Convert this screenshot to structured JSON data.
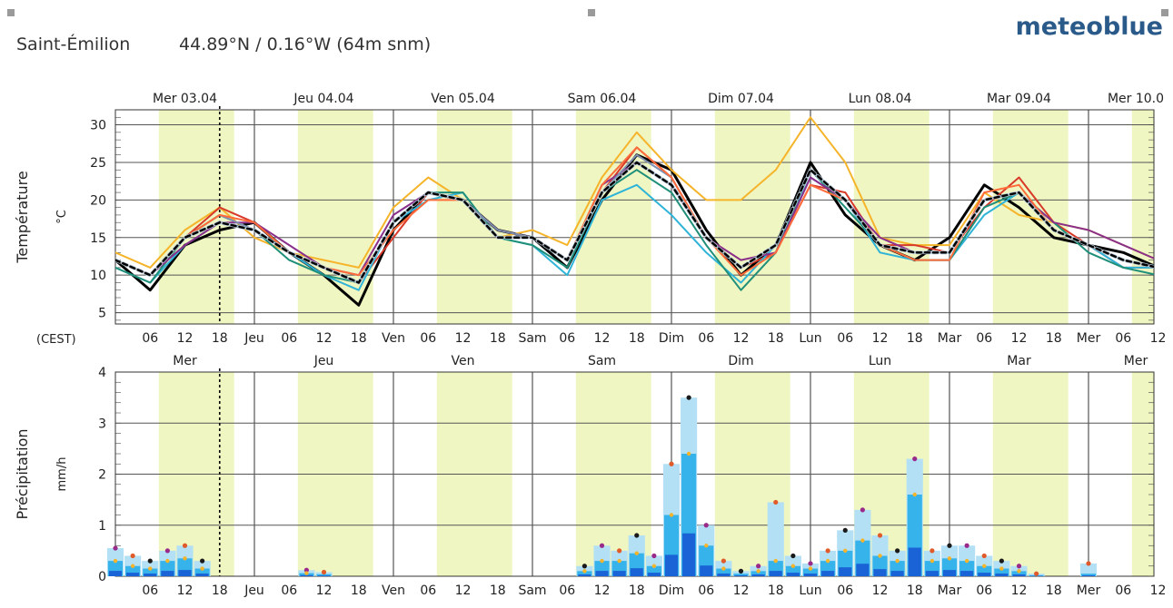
{
  "header": {
    "location": "Saint-Émilion",
    "coords": "44.89°N / 0.16°W (64m snm)",
    "brand": "meteoblue"
  },
  "colors": {
    "daylight": "#f0f6c2",
    "grid": "#555555",
    "median": "#000000",
    "precip_bar_light": "#b3e0f5",
    "precip_bar_mid": "#35b3ea",
    "precip_bar_dark": "#1a63d6",
    "precip_bar_deep": "#1d1aa8"
  },
  "chart_data": [
    {
      "type": "line",
      "ylabel": "Température",
      "yunit": "°C",
      "ylim": [
        3.5,
        32
      ],
      "yticks": [
        5,
        10,
        15,
        20,
        25,
        30
      ],
      "timezone_label": "(CEST)",
      "day_labels": [
        "Mer 03.04",
        "Jeu 04.04",
        "Ven 05.04",
        "Sam 06.04",
        "Dim 07.04",
        "Lun 08.04",
        "Mar 09.04",
        "Mer 10.0"
      ],
      "hour_ticks": [
        "06",
        "12",
        "18",
        "Jeu",
        "06",
        "12",
        "18",
        "Ven",
        "06",
        "12",
        "18",
        "Sam",
        "06",
        "12",
        "18",
        "Dim",
        "06",
        "12",
        "18",
        "Lun",
        "06",
        "12",
        "18",
        "Mar",
        "06",
        "12",
        "18",
        "Mer",
        "06",
        "12"
      ],
      "x_hours": [
        0,
        6,
        12,
        18,
        24,
        30,
        36,
        42,
        48,
        54,
        60,
        66,
        72,
        78,
        84,
        90,
        96,
        102,
        108,
        114,
        120,
        126,
        132,
        138,
        144,
        150,
        156,
        162,
        168,
        174,
        180
      ],
      "series": [
        {
          "color": "#000000",
          "width": 3,
          "values": [
            12,
            8,
            14,
            16,
            17,
            13,
            10,
            6,
            16,
            21,
            20,
            16,
            15,
            11,
            20,
            26,
            24,
            16,
            10,
            14,
            25,
            18,
            14,
            12,
            15,
            22,
            19,
            15,
            14,
            13,
            11
          ]
        },
        {
          "color": "#f5b42a",
          "width": 2,
          "values": [
            13,
            11,
            16,
            19,
            15,
            13,
            12,
            11,
            19,
            23,
            20,
            15,
            16,
            14,
            23,
            29,
            24,
            20,
            20,
            24,
            31,
            25,
            15,
            14,
            14,
            21,
            18,
            17,
            16,
            14,
            12
          ]
        },
        {
          "color": "#d83a2a",
          "width": 2,
          "values": [
            12,
            10,
            15,
            19,
            17,
            13,
            11,
            9,
            15,
            21,
            20,
            15,
            15,
            12,
            21,
            27,
            23,
            15,
            11,
            13,
            22,
            21,
            14,
            14,
            13,
            19,
            23,
            17,
            14,
            11,
            11
          ]
        },
        {
          "color": "#2fb4d8",
          "width": 2,
          "values": [
            11,
            9,
            14,
            17,
            16,
            13,
            10,
            8,
            17,
            20,
            21,
            15,
            14,
            10,
            20,
            22,
            18,
            13,
            9,
            14,
            23,
            20,
            13,
            12,
            12,
            18,
            21,
            16,
            14,
            11,
            11
          ]
        },
        {
          "color": "#1f8f7a",
          "width": 2,
          "values": [
            11,
            9,
            15,
            18,
            16,
            12,
            10,
            9,
            17,
            21,
            21,
            15,
            14,
            11,
            21,
            24,
            21,
            14,
            8,
            13,
            24,
            19,
            14,
            12,
            12,
            19,
            21,
            17,
            13,
            11,
            10
          ]
        },
        {
          "color": "#8a2f8a",
          "width": 2,
          "values": [
            12,
            10,
            14,
            17,
            17,
            14,
            11,
            10,
            18,
            21,
            20,
            16,
            15,
            12,
            22,
            25,
            22,
            15,
            12,
            13,
            23,
            20,
            15,
            13,
            13,
            20,
            21,
            17,
            16,
            14,
            12
          ]
        },
        {
          "color": "#7f8fb0",
          "width": 2,
          "values": [
            12,
            10,
            15,
            18,
            16,
            13,
            11,
            9,
            17,
            21,
            20,
            16,
            15,
            12,
            21,
            26,
            23,
            15,
            11,
            14,
            24,
            20,
            14,
            13,
            13,
            20,
            21,
            16,
            14,
            12,
            11
          ]
        },
        {
          "color": "#ff6b3a",
          "width": 2,
          "values": [
            12,
            10,
            15,
            18,
            17,
            13,
            11,
            10,
            16,
            20,
            20,
            15,
            15,
            12,
            22,
            27,
            23,
            15,
            10,
            13,
            22,
            20,
            14,
            12,
            12,
            21,
            22,
            16,
            14,
            12,
            11
          ]
        },
        {
          "color": "#b5c9d9",
          "width": 4,
          "dash": "5,4",
          "values": [
            12,
            10,
            15,
            17,
            16,
            13,
            11,
            9,
            17,
            21,
            20,
            15,
            15,
            12,
            21,
            25,
            22,
            15,
            11,
            14,
            24,
            20,
            14,
            13,
            13,
            20,
            21,
            16,
            14,
            12,
            11
          ]
        },
        {
          "color": "#000000",
          "width": 2.5,
          "dash": "5,4",
          "values": [
            12,
            10,
            15,
            17,
            16,
            13,
            11,
            9,
            17,
            21,
            20,
            15,
            15,
            12,
            21,
            25,
            22,
            15,
            11,
            14,
            24,
            20,
            14,
            13,
            13,
            20,
            21,
            16,
            14,
            12,
            11
          ]
        }
      ]
    },
    {
      "type": "bar",
      "ylabel": "Précipitation",
      "yunit": "mm/h",
      "ylim": [
        0,
        4
      ],
      "yticks": [
        0,
        1,
        2,
        3,
        4
      ],
      "day_labels": [
        "Mer",
        "Jeu",
        "Ven",
        "Sam",
        "Dim",
        "Lun",
        "Mar",
        "Mer"
      ],
      "hour_ticks": [
        "06",
        "12",
        "18",
        "Jeu",
        "06",
        "12",
        "18",
        "Ven",
        "06",
        "12",
        "18",
        "Sam",
        "06",
        "12",
        "18",
        "Dim",
        "06",
        "12",
        "18",
        "Lun",
        "06",
        "12",
        "18",
        "Mar",
        "06",
        "12",
        "18",
        "Mer",
        "06",
        "12"
      ],
      "hours": [
        0,
        3,
        6,
        9,
        12,
        15,
        33,
        36,
        81,
        84,
        87,
        90,
        93,
        96,
        99,
        102,
        105,
        108,
        111,
        114,
        117,
        120,
        123,
        126,
        129,
        132,
        135,
        138,
        141,
        144,
        147,
        150,
        153,
        156,
        159,
        162,
        165,
        168
      ],
      "max": [
        0.55,
        0.4,
        0.3,
        0.5,
        0.6,
        0.3,
        0.12,
        0.08,
        0.2,
        0.6,
        0.5,
        0.8,
        0.4,
        2.2,
        3.5,
        1.0,
        0.3,
        0.1,
        0.2,
        1.45,
        0.4,
        0.25,
        0.5,
        0.9,
        1.3,
        0.8,
        0.5,
        2.3,
        0.5,
        0.6,
        0.6,
        0.4,
        0.3,
        0.2,
        0.05,
        0.0,
        0.0,
        0.25
      ],
      "mean": [
        0.3,
        0.2,
        0.15,
        0.3,
        0.35,
        0.15,
        0.06,
        0.04,
        0.1,
        0.3,
        0.3,
        0.45,
        0.2,
        1.2,
        2.4,
        0.6,
        0.15,
        0.05,
        0.1,
        0.3,
        0.2,
        0.15,
        0.3,
        0.5,
        0.7,
        0.4,
        0.3,
        1.6,
        0.3,
        0.35,
        0.3,
        0.2,
        0.15,
        0.1,
        0.02,
        0.0,
        0.0,
        0.05
      ]
    }
  ]
}
